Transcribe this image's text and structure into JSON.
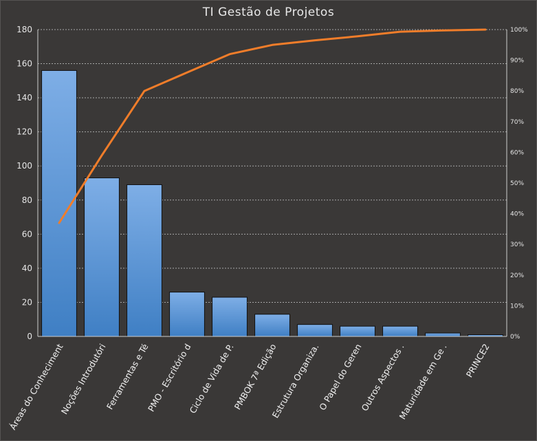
{
  "chart_data": {
    "type": "bar",
    "title": "TI Gestão de Projetos",
    "categories": [
      "Áreas do Conheciment",
      "Noções Introdutóri",
      "Ferramentas e Té",
      "PMO - Escritório d",
      "Ciclo de Vida de P.",
      "PMBOK 7ª Edição",
      "Estrutura Organiza.",
      "O Papel do Geren",
      "Outros Aspectos .",
      "Maturidade em Ge .",
      "PRINCE2"
    ],
    "series": [
      {
        "type": "bar",
        "values": [
          156,
          93,
          89,
          26,
          23,
          13,
          7,
          6,
          6,
          2,
          1
        ]
      },
      {
        "type": "line",
        "axis": "right",
        "values": [
          37,
          59,
          80,
          86,
          92,
          95,
          96.5,
          97.8,
          99.3,
          99.7,
          100
        ]
      }
    ],
    "ylim": [
      0,
      180
    ],
    "yticks": [
      0,
      20,
      40,
      60,
      80,
      100,
      120,
      140,
      160,
      180
    ],
    "y2lim": [
      0,
      100
    ],
    "y2ticks": [
      "0%",
      "10%",
      "20%",
      "30%",
      "40%",
      "50%",
      "60%",
      "70%",
      "80%",
      "90%",
      "100%"
    ],
    "grid": true,
    "legend": "none",
    "colors": {
      "background": "#3a3837",
      "bar_top": "#7eaee6",
      "bar_bottom": "#3f7fc4",
      "line": "#f07d2a",
      "grid": "#a8a8a8",
      "text": "#e6e6e6"
    }
  }
}
